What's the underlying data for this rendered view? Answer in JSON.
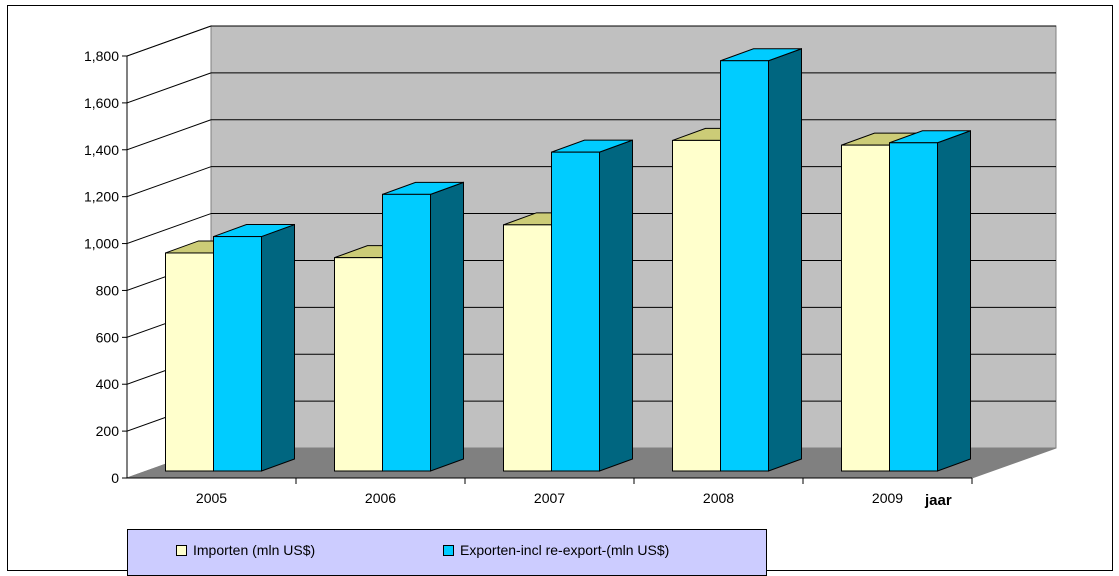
{
  "chart_data": {
    "type": "bar",
    "categories": [
      "2005",
      "2006",
      "2007",
      "2008",
      "2009"
    ],
    "series": [
      {
        "name": "Importen (mln US$)",
        "values": [
          930,
          910,
          1050,
          1410,
          1390
        ],
        "color": "#ffffcc"
      },
      {
        "name": "Exporten-incl re-export-(mln US$)",
        "values": [
          1000,
          1180,
          1360,
          1750,
          1400
        ],
        "color": "#00ccff"
      }
    ],
    "yticks": [
      "0",
      "200",
      "400",
      "600",
      "800",
      "1,000",
      "1,200",
      "1,400",
      "1,600",
      "1,800"
    ],
    "ylim": [
      0,
      1800
    ],
    "xlabel": "jaar",
    "grid": true,
    "legend_position": "bottom-left",
    "colors": {
      "wall": "#c0c0c0",
      "floor": "#808080",
      "side_dark": "#006680",
      "top_yellow": "#cccc77"
    }
  }
}
